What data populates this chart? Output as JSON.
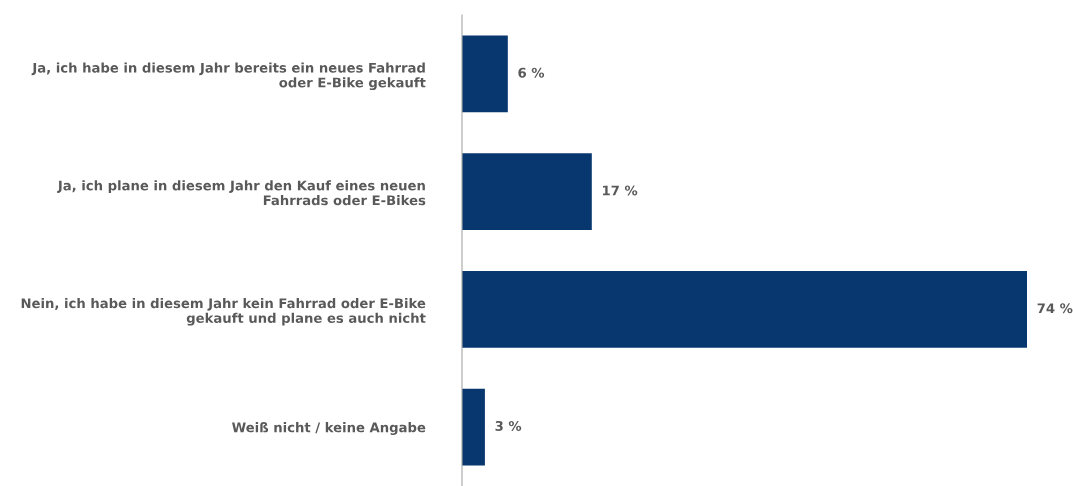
{
  "chart_data": {
    "type": "bar",
    "orientation": "horizontal",
    "categories": [
      "Ja, ich habe in diesem Jahr bereits ein neues Fahrrad\noder E-Bike gekauft",
      "Ja, ich plane in diesem Jahr den Kauf eines neuen\nFahrrads oder E-Bikes",
      "Nein, ich habe in diesem Jahr kein Fahrrad oder E-Bike\ngekauft und plane es auch nicht",
      "Weiß nicht / keine Angabe"
    ],
    "values": [
      6,
      17,
      74,
      3
    ],
    "value_labels": [
      "6 %",
      "17 %",
      "74 %",
      "3 %"
    ],
    "color": "#08366f",
    "grid": false,
    "legend": false
  }
}
